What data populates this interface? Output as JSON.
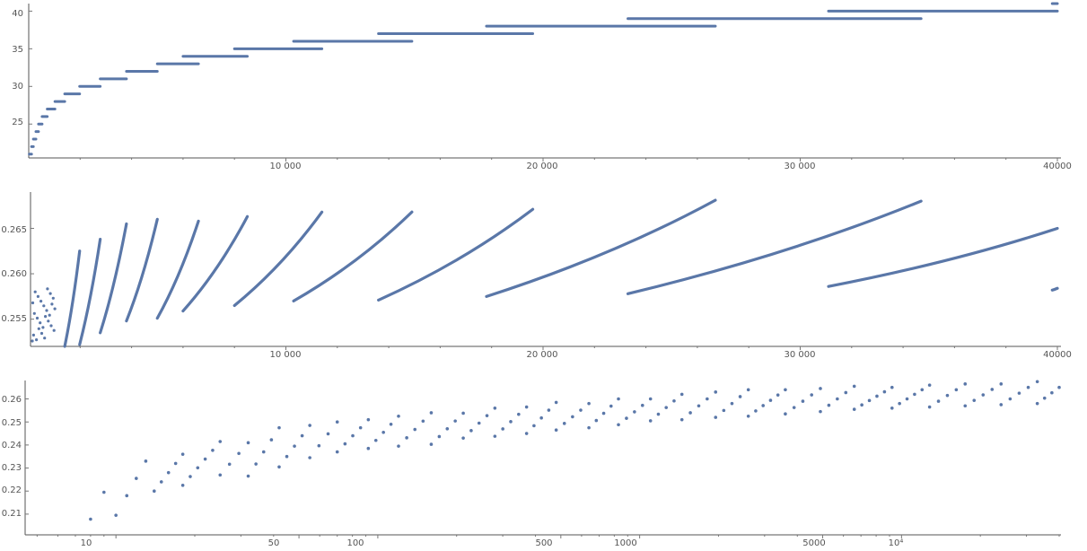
{
  "colors": {
    "points": "#5a77a8",
    "axis": "#555555",
    "ticktext": "#555555"
  },
  "chart_data": [
    {
      "type": "scatter",
      "title": "",
      "xlabel": "",
      "ylabel": "",
      "xscale": "linear",
      "yscale": "linear",
      "xlim": [
        0,
        40000
      ],
      "ylim": [
        20.5,
        41
      ],
      "xticks": [
        10000,
        20000,
        30000,
        40000
      ],
      "xtick_labels": [
        "10 000",
        "20 000",
        "30 000",
        "40000"
      ],
      "yticks": [
        25,
        30,
        35,
        40
      ],
      "ytick_labels": [
        "25",
        "30",
        "35",
        "40"
      ],
      "grid": false,
      "legend": "none",
      "series": [
        {
          "step_segments": [
            {
              "y": 21,
              "x": [
                22,
                110
              ]
            },
            {
              "y": 22,
              "x": [
                110,
                180
              ]
            },
            {
              "y": 23,
              "x": [
                180,
                280
              ]
            },
            {
              "y": 24,
              "x": [
                280,
                380
              ]
            },
            {
              "y": 25,
              "x": [
                380,
                520
              ]
            },
            {
              "y": 26,
              "x": [
                520,
                720
              ]
            },
            {
              "y": 27,
              "x": [
                720,
                1020
              ]
            },
            {
              "y": 28,
              "x": [
                1020,
                1400
              ]
            },
            {
              "y": 29,
              "x": [
                1400,
                1980
              ]
            },
            {
              "y": 30,
              "x": [
                1980,
                2780
              ]
            },
            {
              "y": 31,
              "x": [
                2780,
                3800
              ]
            },
            {
              "y": 32,
              "x": [
                3800,
                5000
              ]
            },
            {
              "y": 33,
              "x": [
                5000,
                6600
              ]
            },
            {
              "y": 34,
              "x": [
                6000,
                8500
              ]
            },
            {
              "y": 35,
              "x": [
                8000,
                11400
              ]
            },
            {
              "y": 36,
              "x": [
                10300,
                14900
              ]
            },
            {
              "y": 37,
              "x": [
                13600,
                19600
              ]
            },
            {
              "y": 38,
              "x": [
                17800,
                26700
              ]
            },
            {
              "y": 39,
              "x": [
                23300,
                34700
              ]
            },
            {
              "y": 40,
              "x": [
                31100,
                40000
              ]
            },
            {
              "y": 41,
              "x": [
                39800,
                40000
              ]
            }
          ]
        }
      ]
    },
    {
      "type": "scatter",
      "title": "",
      "xlabel": "",
      "ylabel": "",
      "xscale": "linear",
      "yscale": "linear",
      "xlim": [
        0,
        40000
      ],
      "ylim": [
        0.252,
        0.269
      ],
      "xticks": [
        10000,
        20000,
        30000,
        40000
      ],
      "xtick_labels": [
        "10 000",
        "20 000",
        "30 000",
        "40000"
      ],
      "yticks": [
        0.255,
        0.26,
        0.265
      ],
      "ytick_labels": [
        "0.255",
        "0.260",
        "0.265"
      ],
      "grid": false,
      "legend": "none",
      "series": [
        {
          "branches": [
            {
              "x0": 1400,
              "x1": 1980,
              "y0": 0.252,
              "y1": 0.2625
            },
            {
              "x0": 1980,
              "x1": 2780,
              "y0": 0.2522,
              "y1": 0.2638
            },
            {
              "x0": 2780,
              "x1": 3800,
              "y0": 0.2535,
              "y1": 0.2655
            },
            {
              "x0": 3800,
              "x1": 5000,
              "y0": 0.2548,
              "y1": 0.266
            },
            {
              "x0": 5000,
              "x1": 6600,
              "y0": 0.2551,
              "y1": 0.2658
            },
            {
              "x0": 6000,
              "x1": 8500,
              "y0": 0.2559,
              "y1": 0.2663
            },
            {
              "x0": 8000,
              "x1": 11400,
              "y0": 0.2565,
              "y1": 0.2668
            },
            {
              "x0": 10300,
              "x1": 14900,
              "y0": 0.257,
              "y1": 0.2668
            },
            {
              "x0": 13600,
              "x1": 19600,
              "y0": 0.2571,
              "y1": 0.2671
            },
            {
              "x0": 17800,
              "x1": 26700,
              "y0": 0.2575,
              "y1": 0.2681
            },
            {
              "x0": 23300,
              "x1": 34700,
              "y0": 0.2578,
              "y1": 0.268
            },
            {
              "x0": 31100,
              "x1": 40000,
              "y0": 0.2586,
              "y1": 0.265
            },
            {
              "x0": 39800,
              "x1": 40000,
              "y0": 0.2582,
              "y1": 0.2584
            }
          ]
        }
      ]
    },
    {
      "type": "scatter",
      "title": "",
      "xlabel": "",
      "ylabel": "",
      "xscale": "log",
      "yscale": "linear",
      "xlim": [
        4.5,
        40000
      ],
      "ylim": [
        0.201,
        0.268
      ],
      "xticks": [
        10,
        50,
        100,
        500,
        1000,
        5000,
        10000
      ],
      "xtick_labels": [
        "10",
        "50",
        "100",
        "500",
        "1000",
        "5000",
        "10⁴"
      ],
      "yticks": [
        0.21,
        0.22,
        0.23,
        0.24,
        0.25,
        0.26
      ],
      "ytick_labels": [
        "0.21",
        "0.22",
        "0.23",
        "0.24",
        "0.25",
        "0.26"
      ],
      "grid": false,
      "legend": "none",
      "series": [
        {
          "branches": [
            {
              "x0": 8,
              "x1": 8,
              "y0": 0.2078,
              "y1": 0.2078
            },
            {
              "x0": 9,
              "x1": 9,
              "y0": 0.2195,
              "y1": 0.2195
            },
            {
              "x0": 10,
              "x1": 10,
              "y0": 0.2095,
              "y1": 0.2095
            },
            {
              "x0": 11,
              "x1": 13,
              "y0": 0.218,
              "y1": 0.233
            },
            {
              "x0": 14,
              "x1": 18,
              "y0": 0.22,
              "y1": 0.236
            },
            {
              "x0": 18,
              "x1": 25,
              "y0": 0.2225,
              "y1": 0.2415
            },
            {
              "x0": 25,
              "x1": 32,
              "y0": 0.227,
              "y1": 0.241
            },
            {
              "x0": 32,
              "x1": 42,
              "y0": 0.2265,
              "y1": 0.2475
            },
            {
              "x0": 42,
              "x1": 55,
              "y0": 0.2305,
              "y1": 0.2485
            },
            {
              "x0": 55,
              "x1": 70,
              "y0": 0.2345,
              "y1": 0.25
            },
            {
              "x0": 70,
              "x1": 92,
              "y0": 0.237,
              "y1": 0.251
            },
            {
              "x0": 92,
              "x1": 120,
              "y0": 0.2385,
              "y1": 0.2525
            },
            {
              "x0": 120,
              "x1": 160,
              "y0": 0.2395,
              "y1": 0.254
            },
            {
              "x0": 160,
              "x1": 212,
              "y0": 0.2403,
              "y1": 0.2538
            },
            {
              "x0": 212,
              "x1": 280,
              "y0": 0.243,
              "y1": 0.256
            },
            {
              "x0": 280,
              "x1": 370,
              "y0": 0.2438,
              "y1": 0.2565
            },
            {
              "x0": 370,
              "x1": 480,
              "y0": 0.245,
              "y1": 0.2585
            },
            {
              "x0": 480,
              "x1": 640,
              "y0": 0.2465,
              "y1": 0.258
            },
            {
              "x0": 640,
              "x1": 830,
              "y0": 0.2475,
              "y1": 0.26
            },
            {
              "x0": 830,
              "x1": 1100,
              "y0": 0.2488,
              "y1": 0.26
            },
            {
              "x0": 1100,
              "x1": 1450,
              "y0": 0.2505,
              "y1": 0.262
            },
            {
              "x0": 1450,
              "x1": 1950,
              "y0": 0.251,
              "y1": 0.263
            },
            {
              "x0": 1950,
              "x1": 2600,
              "y0": 0.252,
              "y1": 0.264
            },
            {
              "x0": 2600,
              "x1": 3600,
              "y0": 0.2525,
              "y1": 0.264
            },
            {
              "x0": 3600,
              "x1": 4900,
              "y0": 0.2535,
              "y1": 0.2645
            },
            {
              "x0": 4900,
              "x1": 6600,
              "y0": 0.2545,
              "y1": 0.2655
            },
            {
              "x0": 6600,
              "x1": 9200,
              "y0": 0.2555,
              "y1": 0.265
            },
            {
              "x0": 9200,
              "x1": 12800,
              "y0": 0.256,
              "y1": 0.266
            },
            {
              "x0": 12800,
              "x1": 17500,
              "y0": 0.2565,
              "y1": 0.2665
            },
            {
              "x0": 17500,
              "x1": 24000,
              "y0": 0.257,
              "y1": 0.2665
            },
            {
              "x0": 24000,
              "x1": 33000,
              "y0": 0.2575,
              "y1": 0.2675
            },
            {
              "x0": 33000,
              "x1": 40000,
              "y0": 0.258,
              "y1": 0.265
            }
          ]
        }
      ]
    }
  ]
}
